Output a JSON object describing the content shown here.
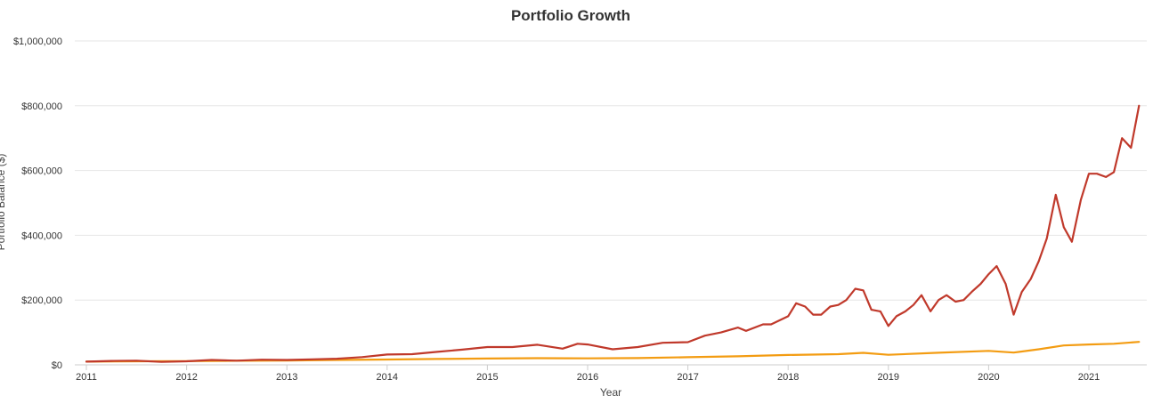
{
  "chart_data": {
    "type": "line",
    "title": "Portfolio Growth",
    "xlabel": "Year",
    "ylabel": "Portfolio Balance ($)",
    "x_ticks": [
      "2011",
      "2012",
      "2013",
      "2014",
      "2015",
      "2016",
      "2017",
      "2018",
      "2019",
      "2020",
      "2021"
    ],
    "y_ticks": [
      "$0",
      "$200,000",
      "$400,000",
      "$600,000",
      "$800,000",
      "$1,000,000"
    ],
    "ylim": [
      0,
      1000000
    ],
    "xlim": [
      2011.0,
      2021.7
    ],
    "grid": true,
    "legend": "none",
    "series": [
      {
        "color": "#C0392B",
        "points": [
          [
            2011.0,
            10000
          ],
          [
            2011.25,
            12000
          ],
          [
            2011.5,
            13000
          ],
          [
            2011.75,
            9000
          ],
          [
            2012.0,
            11000
          ],
          [
            2012.25,
            15000
          ],
          [
            2012.5,
            13000
          ],
          [
            2012.75,
            16000
          ],
          [
            2013.0,
            15000
          ],
          [
            2013.25,
            17000
          ],
          [
            2013.5,
            19000
          ],
          [
            2013.75,
            24000
          ],
          [
            2014.0,
            32000
          ],
          [
            2014.25,
            33000
          ],
          [
            2014.5,
            40000
          ],
          [
            2014.75,
            47000
          ],
          [
            2015.0,
            55000
          ],
          [
            2015.25,
            55000
          ],
          [
            2015.5,
            62000
          ],
          [
            2015.75,
            50000
          ],
          [
            2015.9,
            65000
          ],
          [
            2016.0,
            63000
          ],
          [
            2016.25,
            48000
          ],
          [
            2016.5,
            55000
          ],
          [
            2016.75,
            68000
          ],
          [
            2017.0,
            70000
          ],
          [
            2017.17,
            90000
          ],
          [
            2017.33,
            100000
          ],
          [
            2017.5,
            115000
          ],
          [
            2017.58,
            105000
          ],
          [
            2017.75,
            125000
          ],
          [
            2017.83,
            125000
          ],
          [
            2018.0,
            150000
          ],
          [
            2018.08,
            190000
          ],
          [
            2018.17,
            180000
          ],
          [
            2018.25,
            155000
          ],
          [
            2018.33,
            155000
          ],
          [
            2018.42,
            180000
          ],
          [
            2018.5,
            185000
          ],
          [
            2018.58,
            200000
          ],
          [
            2018.67,
            235000
          ],
          [
            2018.75,
            230000
          ],
          [
            2018.83,
            170000
          ],
          [
            2018.92,
            165000
          ],
          [
            2019.0,
            120000
          ],
          [
            2019.08,
            150000
          ],
          [
            2019.17,
            165000
          ],
          [
            2019.25,
            185000
          ],
          [
            2019.33,
            215000
          ],
          [
            2019.42,
            165000
          ],
          [
            2019.5,
            200000
          ],
          [
            2019.58,
            215000
          ],
          [
            2019.67,
            195000
          ],
          [
            2019.75,
            200000
          ],
          [
            2019.83,
            225000
          ],
          [
            2019.92,
            250000
          ],
          [
            2020.0,
            280000
          ],
          [
            2020.08,
            305000
          ],
          [
            2020.17,
            250000
          ],
          [
            2020.25,
            155000
          ],
          [
            2020.33,
            225000
          ],
          [
            2020.42,
            265000
          ],
          [
            2020.5,
            320000
          ],
          [
            2020.58,
            390000
          ],
          [
            2020.67,
            525000
          ],
          [
            2020.75,
            425000
          ],
          [
            2020.83,
            380000
          ],
          [
            2020.92,
            510000
          ],
          [
            2021.0,
            590000
          ],
          [
            2021.08,
            590000
          ],
          [
            2021.17,
            580000
          ],
          [
            2021.25,
            595000
          ],
          [
            2021.33,
            700000
          ],
          [
            2021.42,
            670000
          ],
          [
            2021.5,
            800000
          ]
        ]
      },
      {
        "color": "#F39C12",
        "points": [
          [
            2011.0,
            10000
          ],
          [
            2011.5,
            11000
          ],
          [
            2012.0,
            11500
          ],
          [
            2012.5,
            12500
          ],
          [
            2013.0,
            13500
          ],
          [
            2013.5,
            15000
          ],
          [
            2014.0,
            16500
          ],
          [
            2014.5,
            18000
          ],
          [
            2015.0,
            19500
          ],
          [
            2015.5,
            20500
          ],
          [
            2016.0,
            20000
          ],
          [
            2016.5,
            21000
          ],
          [
            2017.0,
            23500
          ],
          [
            2017.5,
            26500
          ],
          [
            2018.0,
            30500
          ],
          [
            2018.5,
            33000
          ],
          [
            2018.75,
            37000
          ],
          [
            2019.0,
            31000
          ],
          [
            2019.5,
            37500
          ],
          [
            2020.0,
            43000
          ],
          [
            2020.25,
            38000
          ],
          [
            2020.5,
            48000
          ],
          [
            2020.75,
            60000
          ],
          [
            2021.0,
            63000
          ],
          [
            2021.25,
            65000
          ],
          [
            2021.5,
            71000
          ]
        ]
      }
    ]
  }
}
